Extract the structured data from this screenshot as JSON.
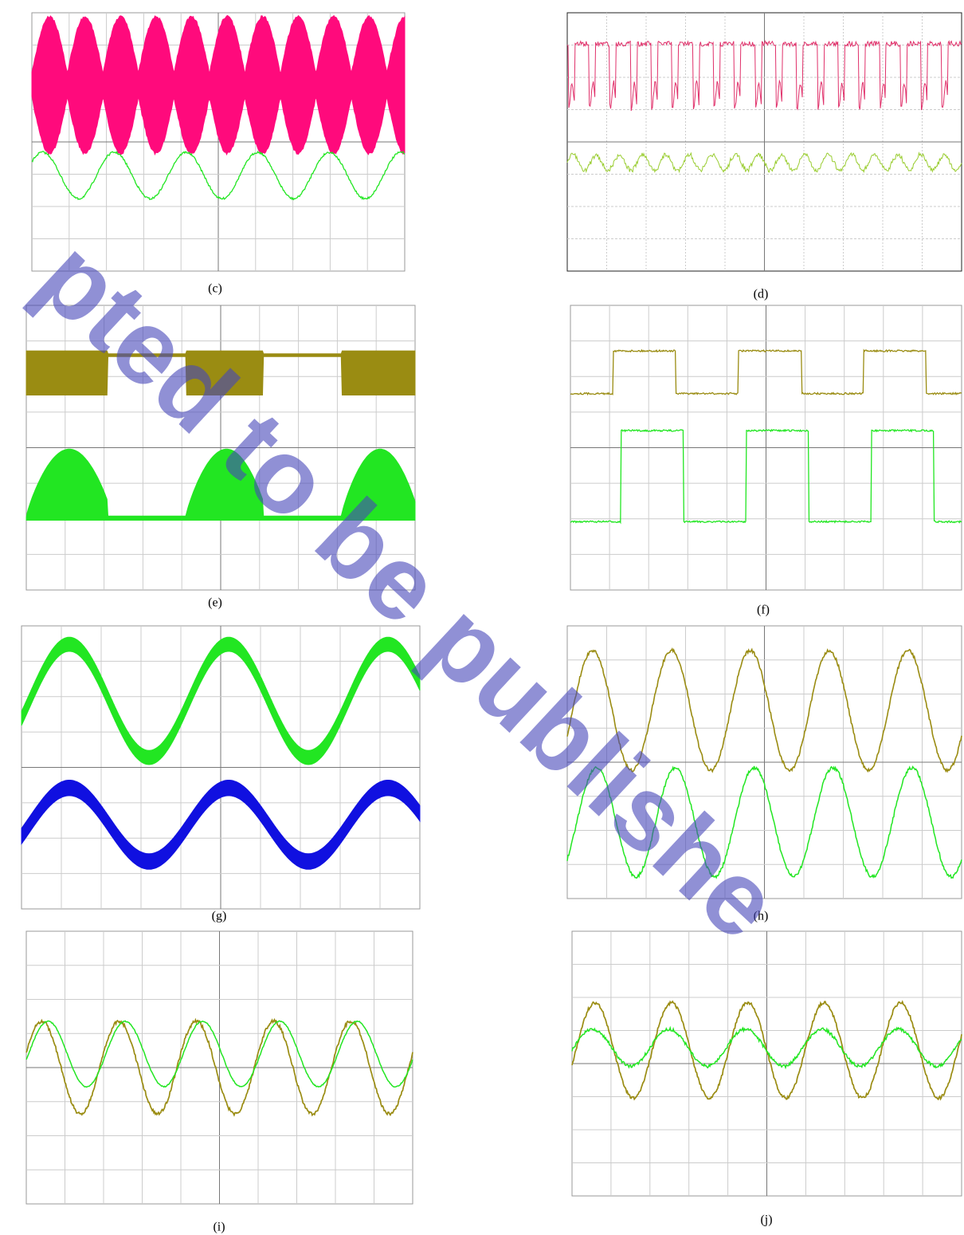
{
  "figure": {
    "panels": [
      {
        "caption": "(c)"
      },
      {
        "caption": "(d)"
      },
      {
        "caption": "(e)"
      },
      {
        "caption": "(f)"
      },
      {
        "caption": "(g)"
      },
      {
        "caption": "(h)"
      },
      {
        "caption": "(i)"
      },
      {
        "caption": "(j)"
      }
    ]
  },
  "watermark": "pted to be publishe"
}
